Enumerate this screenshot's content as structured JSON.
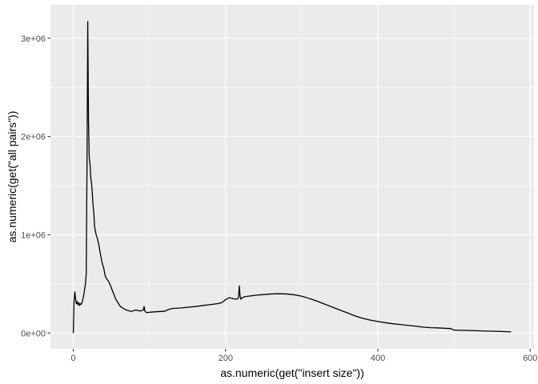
{
  "chart_data": {
    "type": "line",
    "title": "",
    "xlabel": "as.numeric(get(\"insert size\"))",
    "ylabel": "as.numeric(get(\"all pairs\"))",
    "xlim": [
      -30,
      605
    ],
    "ylim": [
      -160000,
      3340000
    ],
    "x_ticks": [
      0,
      200,
      400,
      600
    ],
    "x_tick_labels": [
      "0",
      "200",
      "400",
      "600"
    ],
    "y_ticks": [
      0,
      1000000,
      2000000,
      3000000
    ],
    "y_tick_labels": [
      "0e+00",
      "1e+06",
      "2e+06",
      "3e+06"
    ],
    "x_minor": [
      100,
      300,
      500
    ],
    "y_minor": [
      500000,
      1500000,
      2500000
    ],
    "grid": true,
    "colors": {
      "panel": "#ebebeb",
      "grid": "#ffffff",
      "line": "#000000",
      "tick": "#333333"
    },
    "series": [
      {
        "name": "",
        "x": [
          0,
          1,
          2,
          3,
          4,
          5,
          6,
          7,
          8,
          9,
          10,
          12,
          14,
          16,
          17,
          18,
          19,
          20,
          21,
          22,
          23,
          24,
          25,
          26,
          27,
          28,
          29,
          30,
          31,
          32,
          33,
          34,
          35,
          36,
          38,
          40,
          42,
          44,
          46,
          48,
          50,
          52,
          54,
          56,
          58,
          60,
          62,
          64,
          66,
          68,
          70,
          72,
          74,
          76,
          78,
          80,
          82,
          85,
          88,
          90,
          92,
          93,
          94,
          95,
          96,
          98,
          100,
          105,
          110,
          115,
          120,
          125,
          130,
          140,
          150,
          160,
          170,
          180,
          190,
          195,
          200,
          205,
          210,
          215,
          217,
          218,
          219,
          220,
          222,
          225,
          230,
          240,
          250,
          260,
          270,
          280,
          290,
          300,
          310,
          320,
          330,
          340,
          350,
          360,
          370,
          380,
          390,
          400,
          410,
          420,
          430,
          440,
          450,
          460,
          470,
          480,
          490,
          495,
          496,
          500,
          520,
          540,
          560,
          575
        ],
        "values": [
          0,
          330000,
          420000,
          350000,
          300000,
          320000,
          290000,
          310000,
          280000,
          300000,
          290000,
          320000,
          400000,
          500000,
          600000,
          1700000,
          3170000,
          2150000,
          1780000,
          1720000,
          1580000,
          1520000,
          1420000,
          1300000,
          1220000,
          1080000,
          1040000,
          1000000,
          980000,
          950000,
          920000,
          880000,
          830000,
          790000,
          710000,
          660000,
          580000,
          550000,
          530000,
          500000,
          460000,
          420000,
          380000,
          340000,
          320000,
          290000,
          270000,
          260000,
          250000,
          240000,
          235000,
          230000,
          225000,
          220000,
          225000,
          230000,
          235000,
          230000,
          225000,
          230000,
          235000,
          270000,
          225000,
          215000,
          210000,
          208000,
          212000,
          215000,
          218000,
          220000,
          222000,
          240000,
          250000,
          255000,
          262000,
          270000,
          280000,
          290000,
          300000,
          310000,
          340000,
          360000,
          350000,
          345000,
          360000,
          480000,
          380000,
          345000,
          360000,
          370000,
          375000,
          385000,
          392000,
          398000,
          400000,
          398000,
          390000,
          375000,
          352000,
          325000,
          295000,
          265000,
          235000,
          205000,
          175000,
          150000,
          132000,
          118000,
          105000,
          95000,
          86000,
          78000,
          70000,
          60000,
          55000,
          52000,
          48000,
          46000,
          44000,
          30000,
          26000,
          21000,
          17000,
          12000
        ]
      }
    ]
  }
}
